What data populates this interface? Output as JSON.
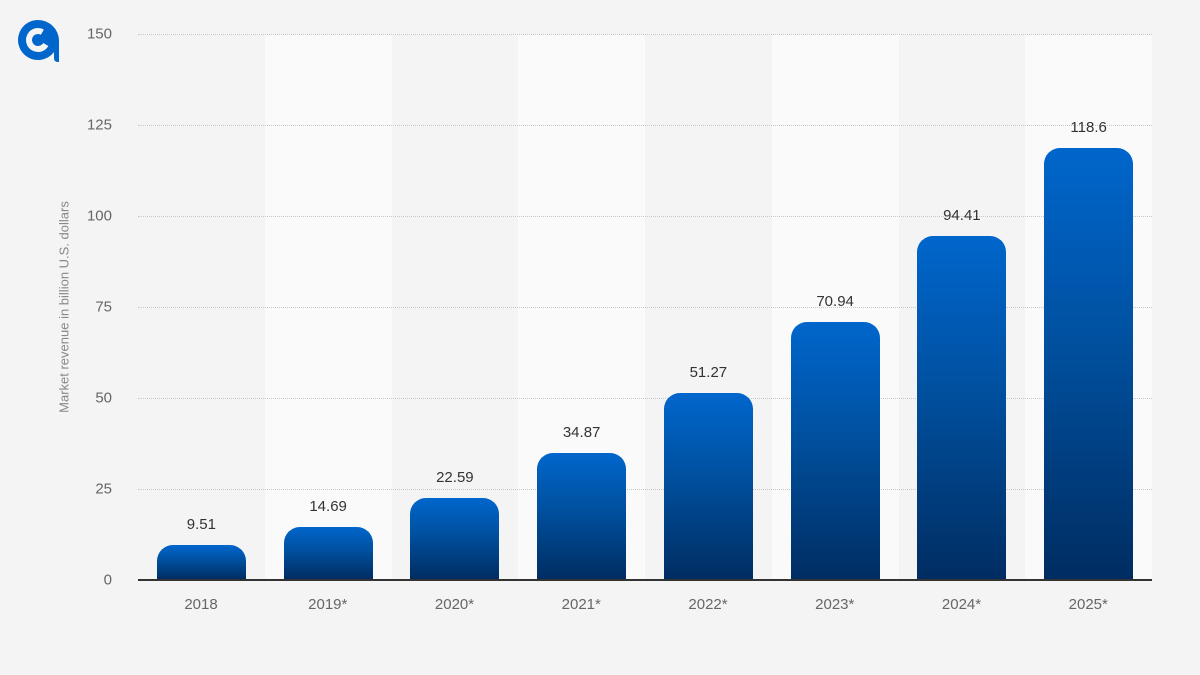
{
  "logo": {
    "icon": "statista-logo-icon",
    "color": "#0066cc"
  },
  "chart_data": {
    "type": "bar",
    "title": "",
    "xlabel": "",
    "ylabel": "Market revenue in billion U.S. dollars",
    "ylim": [
      0,
      150
    ],
    "yticks": [
      "0",
      "25",
      "50",
      "75",
      "100",
      "125",
      "150"
    ],
    "categories": [
      "2018",
      "2019*",
      "2020*",
      "2021*",
      "2022*",
      "2023*",
      "2024*",
      "2025*"
    ],
    "values": [
      9.51,
      14.69,
      22.59,
      34.87,
      51.27,
      70.94,
      94.41,
      118.6
    ],
    "value_labels": [
      "9.51",
      "14.69",
      "22.59",
      "34.87",
      "51.27",
      "70.94",
      "94.41",
      "118.6"
    ],
    "grid": true,
    "legend": null,
    "colors": {
      "bar_top": "#0066cc",
      "bar_bottom": "#002d62",
      "background": "#f4f4f4",
      "band_light": "#fafafa"
    }
  }
}
